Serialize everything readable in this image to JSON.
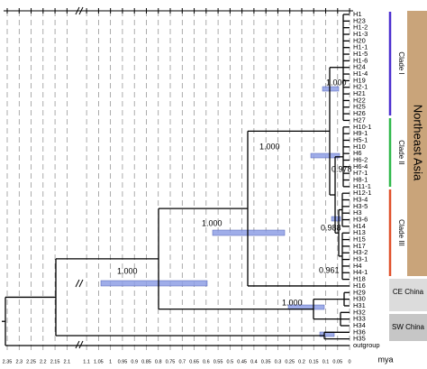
{
  "tips": [
    "H1",
    "H23",
    "H1-2",
    "H1-3",
    "H20",
    "H1-1",
    "H1-5",
    "H1-6",
    "H24",
    "H1-4",
    "H19",
    "H2-1",
    "H21",
    "H22",
    "H25",
    "H26",
    "H27",
    "H10-1",
    "H9-1",
    "H5-1",
    "H10",
    "H6",
    "H6-2",
    "H6-4",
    "H7-1",
    "H8-1",
    "H11-1",
    "H12-1",
    "H3-4",
    "H3-5",
    "H3",
    "H3-6",
    "H14",
    "H13",
    "H15",
    "H17",
    "H3-2",
    "H3-1",
    "H4",
    "H4-1",
    "H18",
    "H16",
    "H29",
    "H30",
    "H31",
    "H32",
    "H33",
    "H34",
    "H36",
    "H35",
    "outgroup"
  ],
  "clade_labels": [
    "Clade I",
    "Clade II",
    "Clade III"
  ],
  "region_labels": [
    "Northeast Asia",
    "CE China",
    "SW China"
  ],
  "support_values": [
    "1.000",
    "1.000",
    "1.000",
    "1.000",
    "0.978",
    "0.988",
    "0.961",
    "1.000"
  ],
  "axis": {
    "ticks": [
      2.35,
      2.3,
      2.25,
      2.2,
      2.15,
      2.1,
      1.1,
      1.05,
      1,
      0.95,
      0.9,
      0.85,
      0.8,
      0.75,
      0.7,
      0.65,
      0.6,
      0.55,
      0.5,
      0.45,
      0.4,
      0.35,
      0.3,
      0.25,
      0.2,
      0.15,
      0.1,
      0.05,
      0
    ],
    "unit": "mya"
  }
}
